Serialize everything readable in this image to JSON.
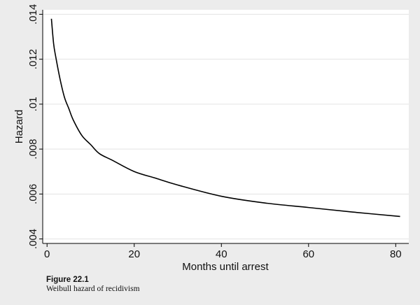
{
  "chart_data": {
    "type": "line",
    "xlabel": "Months until arrest",
    "ylabel": "Hazard",
    "xlim": [
      -1,
      83
    ],
    "ylim": [
      0.0038,
      0.0142
    ],
    "xticks": [
      0,
      20,
      40,
      60,
      80
    ],
    "xtick_labels": [
      "0",
      "20",
      "40",
      "60",
      "80"
    ],
    "yticks": [
      0.004,
      0.006,
      0.008,
      0.01,
      0.012,
      0.014
    ],
    "ytick_labels": [
      ".004",
      ".006",
      ".008",
      ".01",
      ".012",
      ".014"
    ],
    "grid": "horizontal",
    "series": [
      {
        "x": [
          1,
          1.5,
          2,
          3,
          4,
          5,
          6,
          8,
          10,
          12,
          15,
          20,
          25,
          30,
          40,
          50,
          60,
          70,
          81
        ],
        "y": [
          0.0138,
          0.0127,
          0.0121,
          0.0111,
          0.0103,
          0.0098,
          0.0093,
          0.0086,
          0.0082,
          0.0078,
          0.0075,
          0.007,
          0.0067,
          0.0064,
          0.0059,
          0.0056,
          0.0054,
          0.0052,
          0.005
        ],
        "color": "#000000"
      }
    ]
  },
  "caption": {
    "figure_label": "Figure 22.1",
    "text": "Weibull hazard of recidivism"
  }
}
